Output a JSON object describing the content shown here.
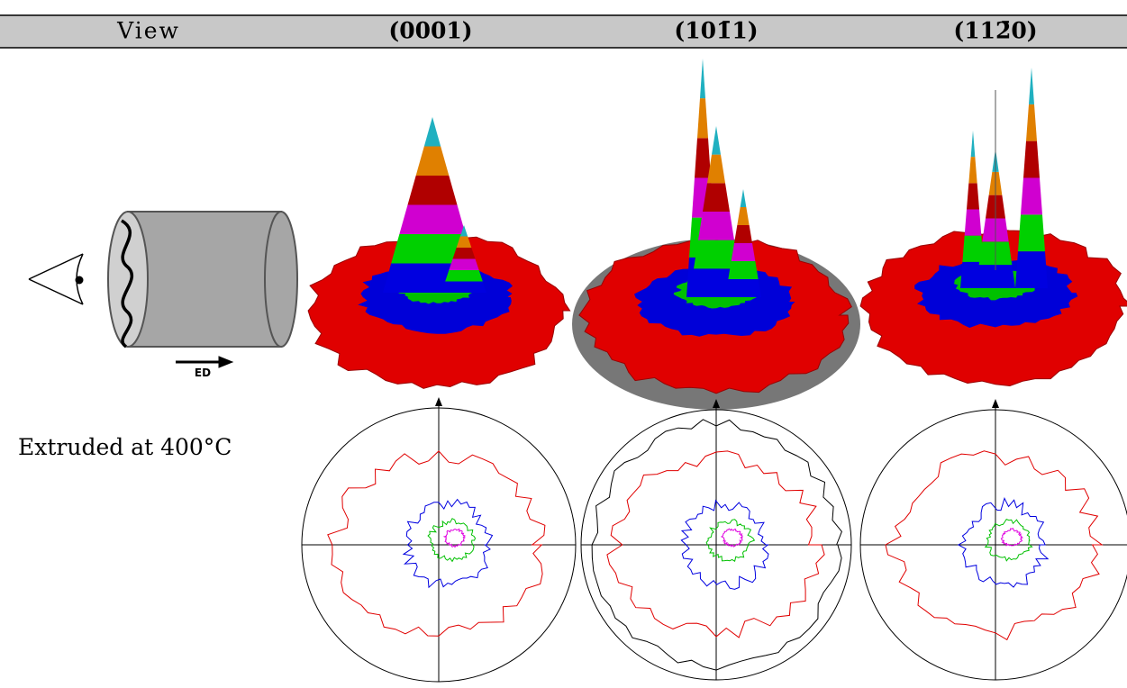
{
  "table": {
    "header": [
      "View",
      "(0001)",
      "(101̄1)",
      "(112̄0)"
    ],
    "row_label": "Extruded at 400°C"
  },
  "diagram": {
    "arrow_label": "ED"
  }
}
